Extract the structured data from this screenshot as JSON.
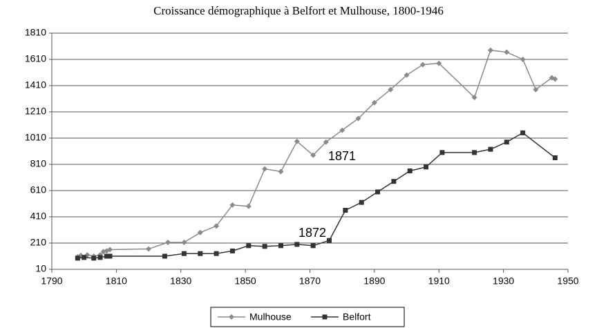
{
  "chart_data": {
    "type": "line",
    "title": "Croissance démographique à Belfort et Mulhouse, 1800-1946",
    "annotations": [
      "1871",
      "1872"
    ],
    "xlim": [
      1790,
      1950
    ],
    "xticks": [
      1790,
      1810,
      1830,
      1850,
      1870,
      1890,
      1910,
      1930,
      1950
    ],
    "ylim": [
      10,
      1810
    ],
    "yticks": [
      10,
      210,
      410,
      610,
      810,
      1010,
      1210,
      1410,
      1610,
      1810
    ],
    "grid": true,
    "legend": "bottom",
    "series": [
      {
        "name": "Mulhouse",
        "color": "#8a8a8a",
        "marker": "diamond",
        "x": [
          1798,
          1799,
          1801,
          1803,
          1805,
          1806,
          1807,
          1808,
          1820,
          1826,
          1831,
          1836,
          1841,
          1846,
          1851,
          1856,
          1861,
          1866,
          1871,
          1875,
          1880,
          1885,
          1890,
          1895,
          1900,
          1905,
          1910,
          1921,
          1926,
          1931,
          1936,
          1940,
          1945,
          1946
        ],
        "values": [
          105,
          115,
          120,
          110,
          120,
          145,
          150,
          160,
          165,
          215,
          215,
          290,
          340,
          500,
          490,
          775,
          755,
          985,
          880,
          980,
          1070,
          1160,
          1280,
          1380,
          1490,
          1570,
          1580,
          1320,
          1680,
          1665,
          1610,
          1380,
          1470,
          1460
        ]
      },
      {
        "name": "Belfort",
        "color": "#333333",
        "marker": "square",
        "x": [
          1798,
          1800,
          1803,
          1805,
          1807,
          1808,
          1825,
          1831,
          1836,
          1841,
          1846,
          1851,
          1856,
          1861,
          1866,
          1871,
          1876,
          1881,
          1886,
          1891,
          1896,
          1901,
          1906,
          1911,
          1921,
          1926,
          1931,
          1936,
          1946
        ],
        "values": [
          95,
          100,
          95,
          100,
          110,
          110,
          110,
          130,
          130,
          130,
          150,
          190,
          185,
          190,
          200,
          190,
          230,
          460,
          520,
          600,
          680,
          760,
          790,
          900,
          900,
          925,
          980,
          1050,
          860
        ]
      }
    ]
  }
}
